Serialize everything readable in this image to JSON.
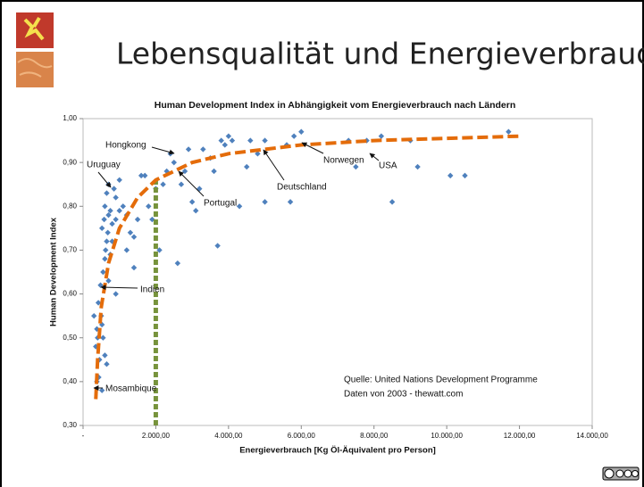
{
  "header": {
    "title": "Lebensqualität und Energieverbrauch"
  },
  "chart_data": {
    "type": "scatter",
    "title": "Human Development Index in Abhängigkeit vom Energieverbrauch nach Ländern",
    "x_label": "Energieverbrauch [Kg Öl-Äquivalent pro Person]",
    "y_label": "Human Development Index",
    "x": [
      300,
      350,
      380,
      400,
      420,
      450,
      380,
      430,
      500,
      520,
      480,
      550,
      600,
      620,
      650,
      520,
      580,
      700,
      680,
      750,
      800,
      600,
      650,
      700,
      850,
      900,
      550,
      600,
      650,
      520,
      700,
      750,
      800,
      900,
      1000,
      1100,
      1200,
      1300,
      1400,
      1500,
      1400,
      1600,
      1700,
      1800,
      1900,
      2000,
      2100,
      2200,
      2300,
      2400,
      2500,
      2600,
      2700,
      2800,
      3000,
      3200,
      3300,
      3500,
      3600,
      3800,
      3900,
      4000,
      4100,
      4300,
      3700,
      4500,
      4600,
      4800,
      5000,
      5000,
      5600,
      5700,
      5800,
      6000,
      7300,
      7500,
      7800,
      8200,
      8500,
      9000,
      9200,
      10100,
      10500,
      11700,
      1000,
      1200,
      900,
      2900,
      3100
    ],
    "values": [
      0.55,
      0.48,
      0.52,
      0.5,
      0.58,
      0.45,
      0.4,
      0.41,
      0.55,
      0.53,
      0.62,
      0.65,
      0.68,
      0.7,
      0.72,
      0.75,
      0.77,
      0.78,
      0.74,
      0.79,
      0.76,
      0.8,
      0.83,
      0.85,
      0.84,
      0.82,
      0.5,
      0.46,
      0.44,
      0.38,
      0.63,
      0.69,
      0.72,
      0.77,
      0.79,
      0.8,
      0.78,
      0.74,
      0.73,
      0.77,
      0.66,
      0.87,
      0.87,
      0.8,
      0.77,
      0.84,
      0.7,
      0.85,
      0.88,
      0.92,
      0.9,
      0.67,
      0.85,
      0.88,
      0.81,
      0.84,
      0.93,
      0.91,
      0.88,
      0.95,
      0.94,
      0.96,
      0.95,
      0.8,
      0.71,
      0.89,
      0.95,
      0.92,
      0.95,
      0.81,
      0.94,
      0.81,
      0.96,
      0.97,
      0.95,
      0.89,
      0.95,
      0.96,
      0.81,
      0.95,
      0.89,
      0.87,
      0.87,
      0.97,
      0.86,
      0.7,
      0.6,
      0.93,
      0.79
    ],
    "color": "#4f81bd",
    "trend": {
      "color": "#e46c0a",
      "x": [
        350,
        400,
        500,
        700,
        1000,
        1500,
        2000,
        3000,
        4000,
        6000,
        8000,
        10000,
        12000
      ],
      "y": [
        0.36,
        0.45,
        0.57,
        0.67,
        0.75,
        0.82,
        0.86,
        0.9,
        0.92,
        0.94,
        0.95,
        0.955,
        0.96
      ]
    },
    "reference_line": {
      "color": "#77933c",
      "x": 2000,
      "y": 0.86
    },
    "xlim": [
      0,
      14000
    ],
    "xticks": [
      {
        "value": 0,
        "label": "-"
      },
      {
        "value": 2000,
        "label": "2.000,00"
      },
      {
        "value": 4000,
        "label": "4.000,00"
      },
      {
        "value": 6000,
        "label": "6.000,00"
      },
      {
        "value": 8000,
        "label": "8.000,00"
      },
      {
        "value": 10000,
        "label": "10.000,00"
      },
      {
        "value": 12000,
        "label": "12.000,00"
      },
      {
        "value": 14000,
        "label": "14.000,00"
      }
    ],
    "ylim": [
      0.3,
      1.0
    ],
    "yticks": [
      {
        "value": 0.3,
        "label": "0,30"
      },
      {
        "value": 0.4,
        "label": "0,40"
      },
      {
        "value": 0.5,
        "label": "0,50"
      },
      {
        "value": 0.6,
        "label": "0,60"
      },
      {
        "value": 0.7,
        "label": "0,70"
      },
      {
        "value": 0.8,
        "label": "0,80"
      },
      {
        "value": 0.9,
        "label": "0,90"
      },
      {
        "value": 1.0,
        "label": "1,00"
      }
    ],
    "annotations": [
      "Hongkong",
      "Uruguay",
      "Portugal",
      "Deutschland",
      "Norwegen",
      "USA",
      "Indien",
      "Mosambique"
    ],
    "source": [
      "Quelle:  United Nations Development Programme",
      "Daten von 2003 - thewatt.com"
    ]
  }
}
